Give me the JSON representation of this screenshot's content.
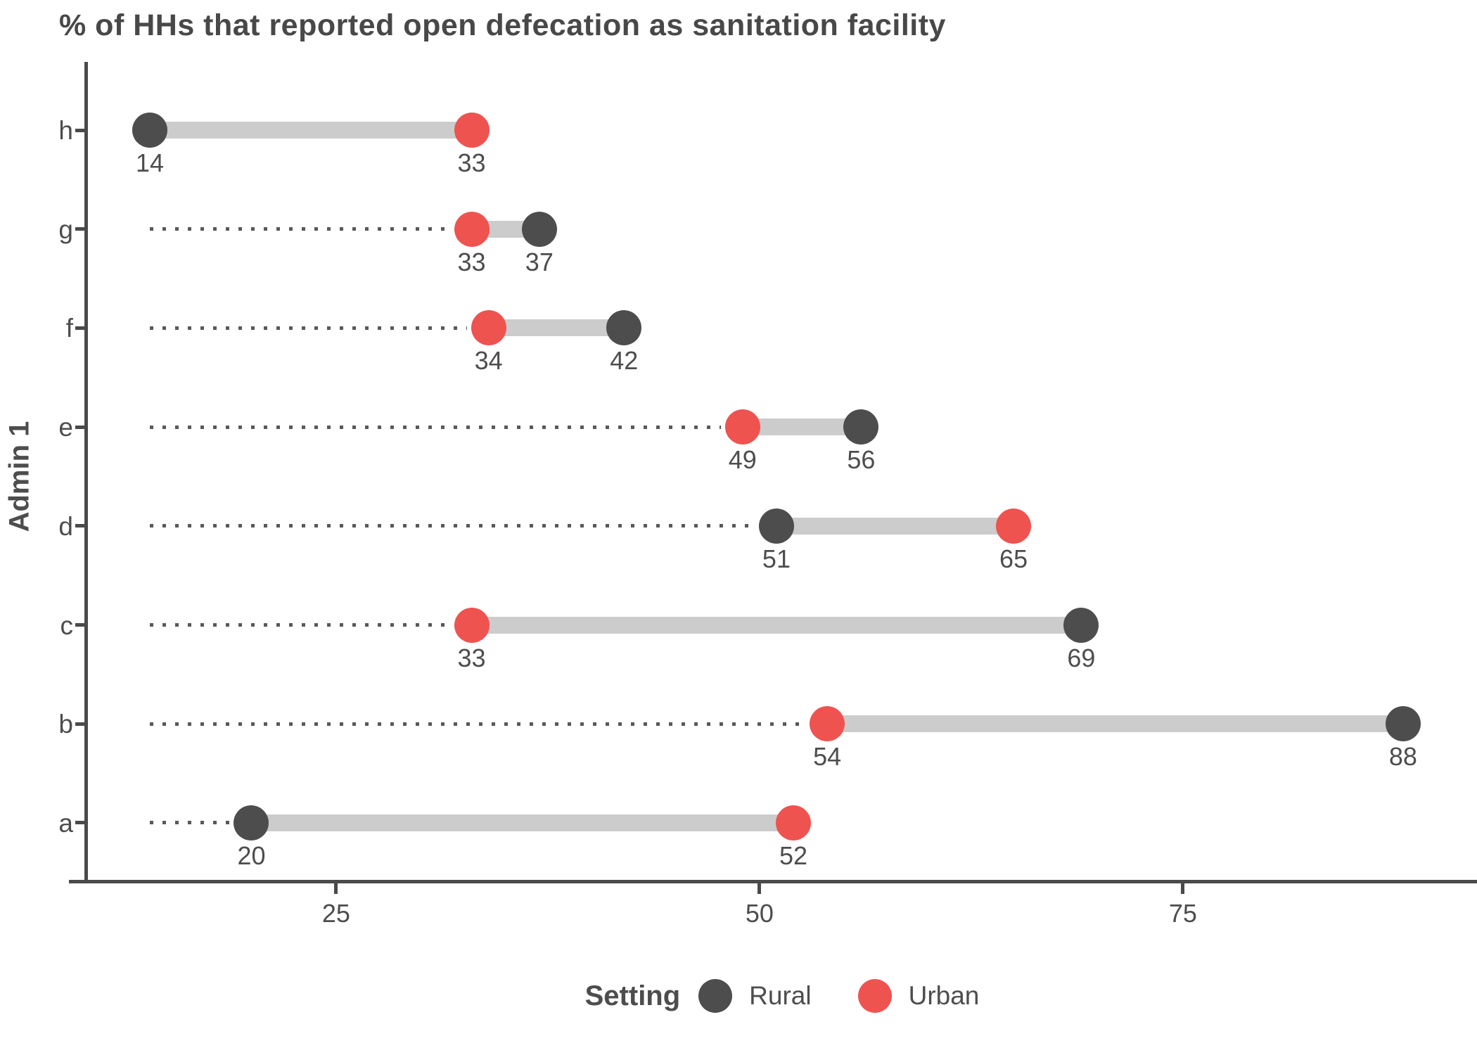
{
  "title": "% of HHs that reported open defecation as sanitation facility",
  "y_axis_title": "Admin 1",
  "x_ticks": [
    "25",
    "50",
    "75"
  ],
  "legend": {
    "title": "Setting",
    "items": [
      {
        "label": "Rural",
        "color": "#4d4d4d"
      },
      {
        "label": "Urban",
        "color": "#ef5350"
      }
    ]
  },
  "colors": {
    "rural": "#4d4d4d",
    "urban": "#ef5350",
    "connector": "#cccccc",
    "dotted_guide": "#595959",
    "axis": "#4a4a4a",
    "text": "#4d4d4d",
    "title_text": "#484848"
  },
  "chart_data": {
    "type": "dumbbell",
    "orientation": "horizontal",
    "title": "% of HHs that reported open defecation as sanitation facility",
    "xlabel": "",
    "ylabel": "Admin 1",
    "categories": [
      "h",
      "g",
      "f",
      "e",
      "d",
      "c",
      "b",
      "a"
    ],
    "categories_note": "listed top to bottom as displayed; y axis ascends a (bottom) to h (top)",
    "series": [
      {
        "name": "Rural",
        "color": "#4d4d4d",
        "values": [
          14,
          37,
          42,
          56,
          51,
          69,
          88,
          20
        ]
      },
      {
        "name": "Urban",
        "color": "#ef5350",
        "values": [
          33,
          33,
          34,
          49,
          65,
          33,
          54,
          52
        ]
      }
    ],
    "point_labels_visible": true,
    "x_ticks": [
      25,
      50,
      75
    ],
    "xlim": [
      9,
      92
    ],
    "grid": false,
    "legend_position": "bottom",
    "guide": "dotted line drawn from the global minimum value (14) to each row's lower point"
  }
}
